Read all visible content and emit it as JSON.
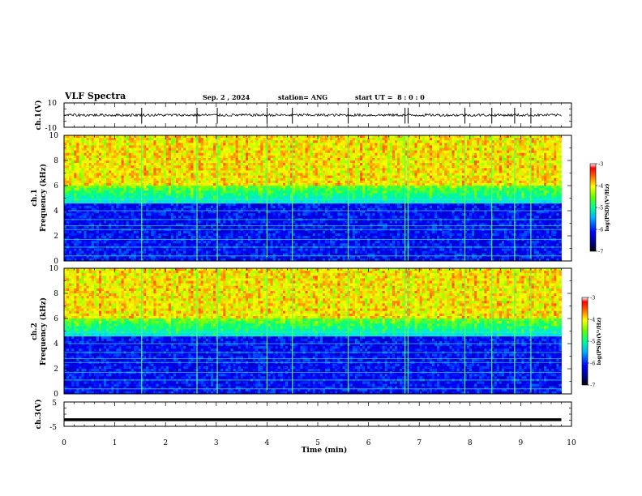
{
  "header": {
    "title": "VLF Spectra",
    "date": "Sep. 2 , 2024",
    "station": "station= ANG",
    "start": "start UT =  8 : 0 : 0"
  },
  "chart_data": [
    {
      "type": "line",
      "ylabel": "ch.1(V)",
      "ylim": [
        -10,
        10
      ],
      "yticks": [
        "10",
        "-10"
      ],
      "description_series": "broadband waveform amplitude",
      "xlim": [
        0,
        10
      ]
    },
    {
      "type": "heatmap",
      "ylabel": "ch.1\nFrequency (kHz)",
      "ylabel_lines": [
        "ch.1",
        "Frequency (kHz)"
      ],
      "ylim": [
        0,
        10
      ],
      "yticks": [
        "0",
        "2",
        "4",
        "6",
        "8",
        "10"
      ],
      "xlim": [
        0,
        10
      ],
      "data_xmax": 9.8,
      "colorbar": {
        "label": "log(PSD)(V²/Hz)",
        "range": [
          -7,
          -3
        ],
        "ticks": [
          "-3",
          "-4",
          "-5",
          "-6",
          "-7"
        ]
      },
      "harmonic_lines_khz": [
        0.4,
        1.1,
        1.7,
        2.5,
        2.8,
        3.3,
        4.0,
        4.6,
        4.9
      ],
      "spike_times_min": [
        1.53,
        2.62,
        3.02,
        4.0,
        4.5,
        5.6,
        6.72,
        6.78,
        7.9,
        8.43,
        8.88,
        9.2
      ]
    },
    {
      "type": "heatmap",
      "ylabel": "ch.2\nFrequency (kHz)",
      "ylabel_lines": [
        "ch.2",
        "Frequency (kHz)"
      ],
      "ylim": [
        0,
        10
      ],
      "yticks": [
        "0",
        "2",
        "4",
        "6",
        "8",
        "10"
      ],
      "xlim": [
        0,
        10
      ],
      "data_xmax": 9.8,
      "colorbar": {
        "label": "log(PSD)(V²/Hz)",
        "range": [
          -7,
          -3
        ],
        "ticks": [
          "-3",
          "-4",
          "-5",
          "-6",
          "-7"
        ]
      },
      "harmonic_lines_khz": [
        0.4,
        1.1,
        1.7,
        2.5,
        2.8,
        3.3,
        4.0,
        4.6,
        4.9
      ],
      "spike_times_min": [
        1.53,
        2.62,
        3.02,
        4.0,
        4.5,
        5.6,
        6.72,
        6.78,
        7.9,
        8.43,
        8.88,
        9.2
      ]
    },
    {
      "type": "line",
      "ylabel": "ch.3(V)",
      "ylim": [
        -5,
        5
      ],
      "yticks": [
        "5",
        "-5"
      ],
      "level_volts": -2.3,
      "xlim": [
        0,
        10
      ]
    }
  ],
  "xaxis": {
    "label": "Time (min)",
    "ticks": [
      "0",
      "1",
      "2",
      "3",
      "4",
      "5",
      "6",
      "7",
      "8",
      "9",
      "10"
    ]
  },
  "colors": {
    "colormap": [
      "#000000",
      "#0000aa",
      "#0000ff",
      "#0080ff",
      "#00e0ff",
      "#00ff80",
      "#80ff00",
      "#ffff00",
      "#ff8000",
      "#ff0000",
      "#ffffff"
    ]
  }
}
